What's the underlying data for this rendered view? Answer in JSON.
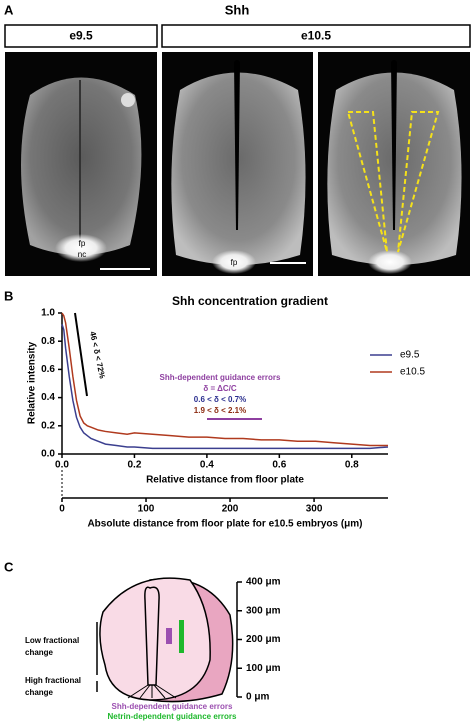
{
  "panel_a": {
    "letter": "A",
    "title": "Shh",
    "stage_1": "e9.5",
    "stage_2": "e10.5",
    "fp_1": "fp",
    "nc_1": "nc",
    "fp_2": "fp"
  },
  "chart_data": {
    "type": "line",
    "letter": "B",
    "title": "Shh concentration gradient",
    "xlabel": "Relative distance from floor plate",
    "ylabel": "Relative intensity",
    "x": [
      0,
      0.005,
      0.01,
      0.02,
      0.03,
      0.04,
      0.05,
      0.06,
      0.07,
      0.08,
      0.1,
      0.12,
      0.15,
      0.18,
      0.2,
      0.25,
      0.3,
      0.35,
      0.4,
      0.45,
      0.5,
      0.55,
      0.6,
      0.65,
      0.7,
      0.75,
      0.8,
      0.85,
      0.9
    ],
    "series": [
      {
        "name": "e9.5",
        "color": "#3b3f8f",
        "values": [
          0.92,
          0.88,
          0.75,
          0.55,
          0.38,
          0.26,
          0.19,
          0.15,
          0.13,
          0.11,
          0.09,
          0.07,
          0.06,
          0.05,
          0.05,
          0.04,
          0.04,
          0.04,
          0.04,
          0.04,
          0.04,
          0.04,
          0.04,
          0.04,
          0.04,
          0.04,
          0.04,
          0.04,
          0.05
        ]
      },
      {
        "name": "e10.5",
        "color": "#b03a1e",
        "values": [
          1.0,
          0.98,
          0.93,
          0.75,
          0.55,
          0.38,
          0.27,
          0.22,
          0.2,
          0.19,
          0.17,
          0.16,
          0.15,
          0.14,
          0.15,
          0.14,
          0.13,
          0.12,
          0.12,
          0.11,
          0.11,
          0.1,
          0.1,
          0.09,
          0.09,
          0.08,
          0.07,
          0.06,
          0.06
        ]
      }
    ],
    "xlim": [
      0,
      0.9
    ],
    "xticks": [
      {
        "value": 0,
        "label": "0.0"
      },
      0.2,
      0.4,
      0.6,
      0.8
    ],
    "ylim": [
      0,
      1.0
    ],
    "yticks": [
      {
        "value": 0,
        "label": "0.0"
      },
      0.2,
      0.4,
      0.6,
      0.8,
      {
        "value": 1,
        "label": "1.0"
      }
    ],
    "x2label": "Absolute distance from floor plate for e10.5 embryos (μm)",
    "x2lim": [
      0,
      388
    ],
    "x2ticks": [
      0,
      100,
      200,
      300
    ],
    "legend": "upper right",
    "annotations": {
      "slope": "46 < δ < 72%",
      "errors": "Shh-dependent guidance errors",
      "delta": "δ = ΔC/C",
      "e95_range": "0.6 < δ < 0.7%",
      "e105_range": "1.9 < δ < 2.1%"
    }
  },
  "panel_c": {
    "letter": "C",
    "scale": [
      "400 μm",
      "300 μm",
      "200 μm",
      "100 μm",
      "0 μm"
    ],
    "low": [
      "Low fractional",
      "change"
    ],
    "high": [
      "High fractional",
      "change"
    ],
    "legend_shh": "Shh-dependent guidance errors",
    "legend_netrin": "Netrin-dependent guidance errors"
  }
}
